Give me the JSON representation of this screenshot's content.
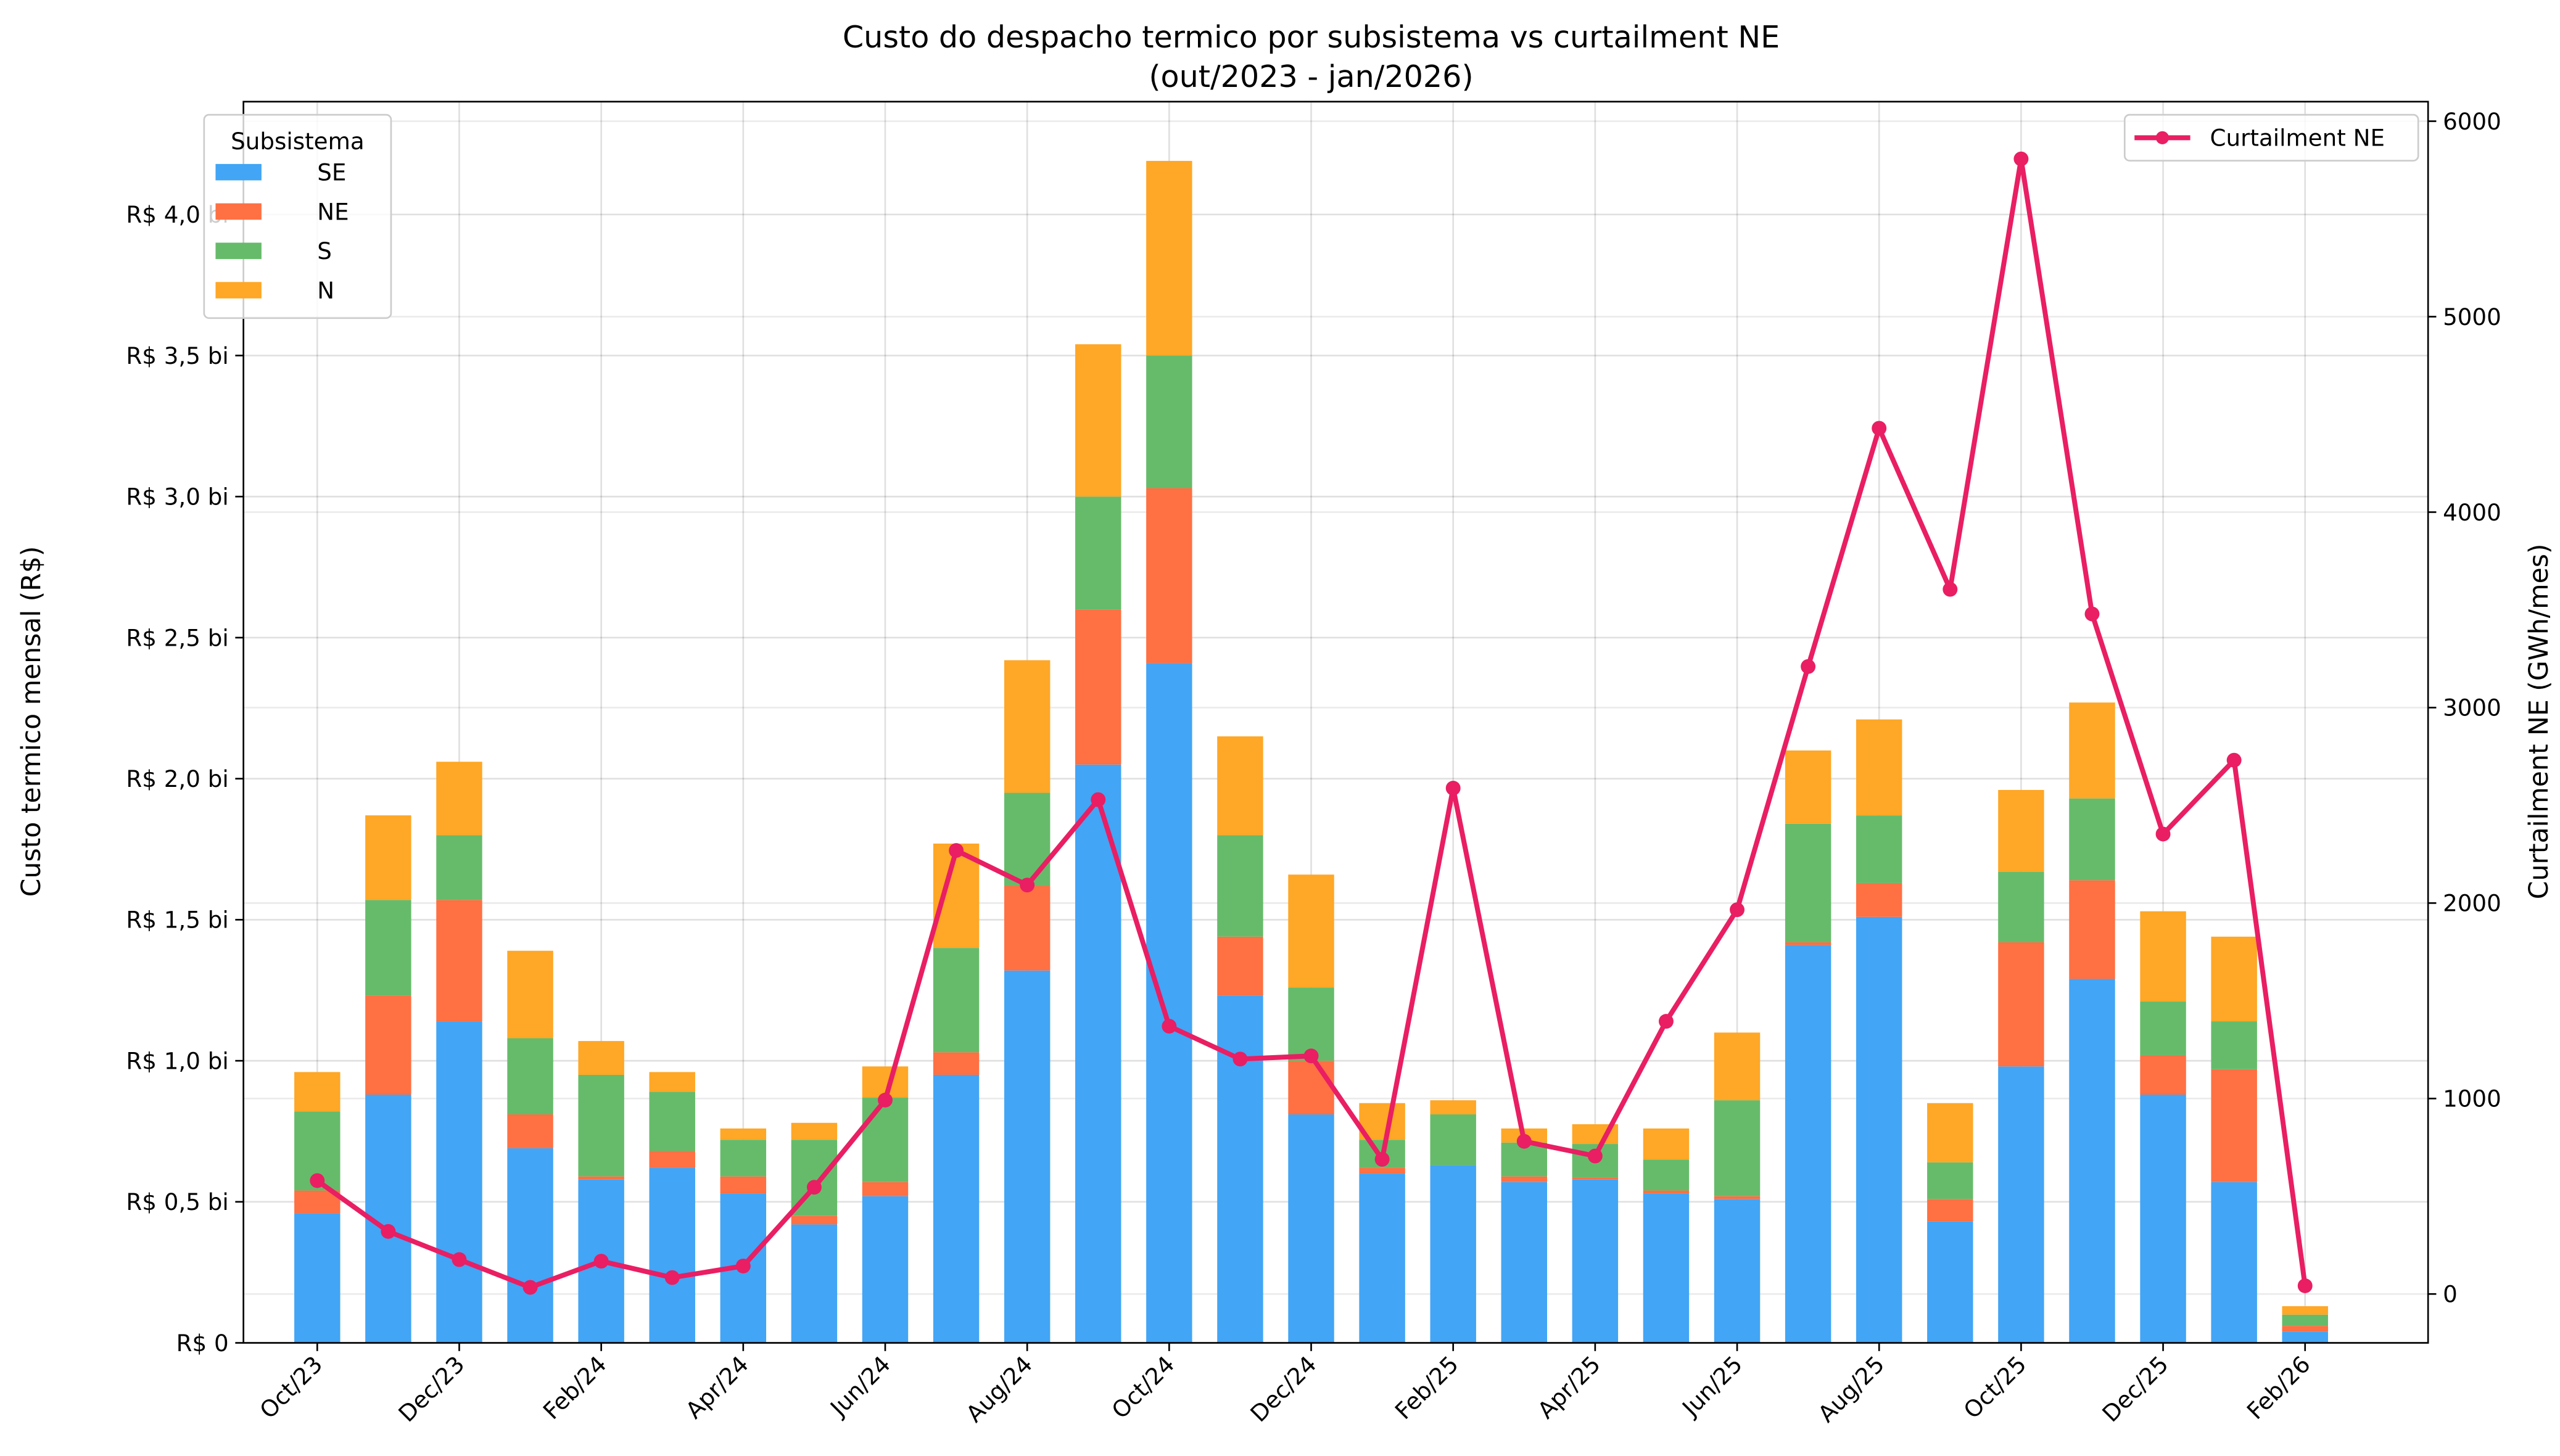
{
  "chart_data": {
    "type": "bar",
    "stacked": true,
    "title": "Custo do despacho termico por subsistema vs curtailment NE",
    "subtitle": "(out/2023 - jan/2026)",
    "ylabel": "Custo termico mensal (R$)",
    "y2label": "Curtailment NE (GWh/mes)",
    "ylim": [
      0,
      4.4
    ],
    "y2lim": [
      -250,
      6100
    ],
    "grid": true,
    "legend_title": "Subsistema",
    "legend_placement": "top-left",
    "legend2_placement": "top-right",
    "yticks": [
      0,
      0.5,
      1.0,
      1.5,
      2.0,
      2.5,
      3.0,
      3.5,
      4.0
    ],
    "ytick_labels": [
      "R$ 0",
      "R$ 0,5 bi",
      "R$ 1,0 bi",
      "R$ 1,5 bi",
      "R$ 2,0 bi",
      "R$ 2,5 bi",
      "R$ 3,0 bi",
      "R$ 3,5 bi",
      "R$ 4,0 bi"
    ],
    "y2ticks": [
      0,
      1000,
      2000,
      3000,
      4000,
      5000,
      6000
    ],
    "y2tick_labels": [
      "0",
      "1000",
      "2000",
      "3000",
      "4000",
      "5000",
      "6000"
    ],
    "xtick_labels": [
      "Oct/23",
      "Dec/23",
      "Feb/24",
      "Apr/24",
      "Jun/24",
      "Aug/24",
      "Oct/24",
      "Dec/24",
      "Feb/25",
      "Apr/25",
      "Jun/25",
      "Aug/25",
      "Oct/25",
      "Dec/25",
      "Feb/26"
    ],
    "categories": [
      "Oct/23",
      "Nov/23",
      "Dec/23",
      "Jan/24",
      "Feb/24",
      "Mar/24",
      "Apr/24",
      "May/24",
      "Jun/24",
      "Jul/24",
      "Aug/24",
      "Sep/24",
      "Oct/24",
      "Nov/24",
      "Dec/24",
      "Jan/25",
      "Feb/25",
      "Mar/25",
      "Apr/25",
      "May/25",
      "Jun/25",
      "Jul/25",
      "Aug/25",
      "Sep/25",
      "Oct/25",
      "Nov/25",
      "Dec/25",
      "Jan/26",
      "Feb/26"
    ],
    "series": [
      {
        "name": "SE",
        "color": "#42a5f5",
        "values": [
          0.46,
          0.88,
          1.14,
          0.69,
          0.58,
          0.62,
          0.53,
          0.42,
          0.52,
          0.95,
          1.32,
          2.05,
          2.41,
          1.23,
          0.81,
          0.6,
          0.63,
          0.57,
          0.58,
          0.53,
          0.51,
          1.41,
          1.51,
          0.43,
          0.98,
          1.29,
          0.88,
          0.57,
          0.04
        ]
      },
      {
        "name": "NE",
        "color": "#ff7043",
        "values": [
          0.08,
          0.35,
          0.43,
          0.12,
          0.01,
          0.06,
          0.06,
          0.03,
          0.05,
          0.08,
          0.3,
          0.55,
          0.62,
          0.21,
          0.19,
          0.02,
          0.0,
          0.02,
          0.005,
          0.01,
          0.01,
          0.01,
          0.12,
          0.08,
          0.44,
          0.35,
          0.14,
          0.4,
          0.02
        ]
      },
      {
        "name": "S",
        "color": "#66bb6a",
        "values": [
          0.28,
          0.34,
          0.23,
          0.27,
          0.36,
          0.21,
          0.13,
          0.27,
          0.3,
          0.37,
          0.33,
          0.4,
          0.47,
          0.36,
          0.26,
          0.1,
          0.18,
          0.12,
          0.12,
          0.11,
          0.34,
          0.42,
          0.24,
          0.13,
          0.25,
          0.29,
          0.19,
          0.17,
          0.04
        ]
      },
      {
        "name": "N",
        "color": "#ffa726",
        "values": [
          0.14,
          0.3,
          0.26,
          0.31,
          0.12,
          0.07,
          0.04,
          0.06,
          0.11,
          0.37,
          0.47,
          0.54,
          0.69,
          0.35,
          0.4,
          0.13,
          0.05,
          0.05,
          0.07,
          0.11,
          0.24,
          0.26,
          0.34,
          0.21,
          0.29,
          0.34,
          0.32,
          0.3,
          0.03
        ]
      }
    ],
    "line_series": {
      "name": "Curtailment NE",
      "color": "#e91e63",
      "axis": "right",
      "values": [
        580,
        320,
        176,
        34,
        168,
        84,
        143,
        546,
        992,
        2269,
        2092,
        2529,
        1370,
        1202,
        1218,
        689,
        2588,
        781,
        706,
        1395,
        1966,
        3210,
        4429,
        3605,
        5807,
        3479,
        2353,
        2731,
        42
      ]
    }
  }
}
